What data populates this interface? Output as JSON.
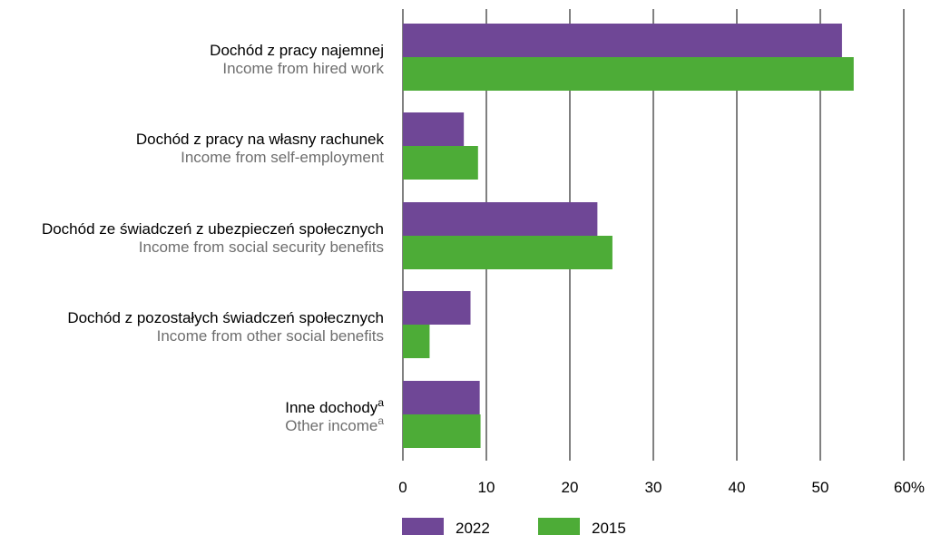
{
  "chart_data": {
    "type": "bar",
    "orientation": "horizontal",
    "categories": [
      {
        "pl": "Dochód z pracy najemnej",
        "en": "Income from hired work"
      },
      {
        "pl": "Dochód z pracy na własny rachunek",
        "en": "Income from self-employment"
      },
      {
        "pl": "Dochód ze świadczeń z ubezpieczeń społecznych",
        "en": "Income from social security benefits"
      },
      {
        "pl": "Dochód z pozostałych świadczeń społecznych",
        "en": "Income from other social benefits"
      },
      {
        "pl": "Inne dochody",
        "en": "Other income",
        "sup": "a"
      }
    ],
    "series": [
      {
        "name": "2022",
        "color": "#6f4796",
        "values": [
          52.6,
          7.3,
          23.3,
          8.1,
          9.2
        ]
      },
      {
        "name": "2015",
        "color": "#4dac37",
        "values": [
          54.0,
          9.0,
          25.1,
          3.2,
          9.3
        ]
      }
    ],
    "xlim": [
      0,
      60
    ],
    "xticks": [
      "0",
      "10",
      "20",
      "30",
      "40",
      "50",
      "60%"
    ],
    "xtick_values": [
      0,
      10,
      20,
      30,
      40,
      50,
      60
    ],
    "grid": true,
    "legend_position": "bottom-left"
  }
}
